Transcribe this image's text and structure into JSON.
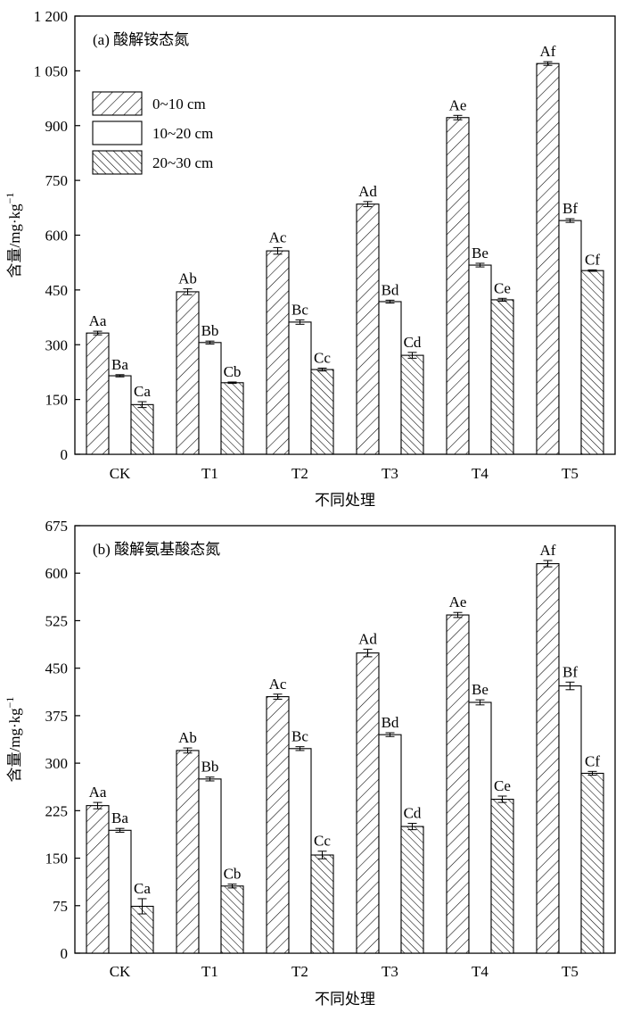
{
  "legend": [
    "0~10 cm",
    "10~20 cm",
    "20~30 cm"
  ],
  "colors": {
    "axis": "#000000",
    "bar_fill": "#ffffff",
    "hatch": "#000000"
  },
  "chart_data": [
    {
      "type": "bar",
      "title": "(a) 酸解铵态氮",
      "xlabel": "不同处理",
      "ylabel_main": "含量/mg·kg",
      "ylabel_sup": "−1",
      "categories": [
        "CK",
        "T1",
        "T2",
        "T3",
        "T4",
        "T5"
      ],
      "ylim": [
        0,
        1200
      ],
      "yticks": [
        0,
        150,
        300,
        450,
        600,
        750,
        900,
        1050,
        1200
      ],
      "ytick_labels": [
        "0",
        "150",
        "300",
        "450",
        "600",
        "750",
        "900",
        "1 050",
        "1 200"
      ],
      "legend_position": "top-left",
      "series": [
        {
          "name": "0~10 cm",
          "pattern": "hatch-right",
          "values": [
            332,
            445,
            557,
            685,
            922,
            1070
          ],
          "errors": [
            5,
            8,
            9,
            7,
            6,
            5
          ],
          "labels": [
            "Aa",
            "Ab",
            "Ac",
            "Ad",
            "Ae",
            "Af"
          ]
        },
        {
          "name": "10~20 cm",
          "pattern": "none",
          "values": [
            215,
            306,
            362,
            418,
            518,
            640
          ],
          "errors": [
            3,
            4,
            6,
            4,
            5,
            5
          ],
          "labels": [
            "Ba",
            "Bb",
            "Bc",
            "Bd",
            "Be",
            "Bf"
          ]
        },
        {
          "name": "20~30 cm",
          "pattern": "hatch-left",
          "values": [
            136,
            196,
            232,
            271,
            423,
            503
          ],
          "errors": [
            8,
            2,
            4,
            8,
            4,
            2
          ],
          "labels": [
            "Ca",
            "Cb",
            "Cc",
            "Cd",
            "Ce",
            "Cf"
          ]
        }
      ]
    },
    {
      "type": "bar",
      "title": "(b) 酸解氨基酸态氮",
      "xlabel": "不同处理",
      "ylabel_main": "含量/mg·kg",
      "ylabel_sup": "−1",
      "categories": [
        "CK",
        "T1",
        "T2",
        "T3",
        "T4",
        "T5"
      ],
      "ylim": [
        0,
        675
      ],
      "yticks": [
        0,
        75,
        150,
        225,
        300,
        375,
        450,
        525,
        600,
        675
      ],
      "ytick_labels": [
        "0",
        "75",
        "150",
        "225",
        "300",
        "375",
        "450",
        "525",
        "600",
        "675"
      ],
      "legend_position": "none",
      "series": [
        {
          "name": "0~10 cm",
          "pattern": "hatch-right",
          "values": [
            233,
            320,
            405,
            474,
            534,
            615
          ],
          "errors": [
            5,
            4,
            4,
            6,
            4,
            5
          ],
          "labels": [
            "Aa",
            "Ab",
            "Ac",
            "Ad",
            "Ae",
            "Af"
          ]
        },
        {
          "name": "10~20 cm",
          "pattern": "none",
          "values": [
            194,
            275,
            323,
            345,
            396,
            422
          ],
          "errors": [
            3,
            3,
            3,
            3,
            4,
            6
          ],
          "labels": [
            "Ba",
            "Bb",
            "Bc",
            "Bd",
            "Be",
            "Bf"
          ]
        },
        {
          "name": "20~30 cm",
          "pattern": "hatch-left",
          "values": [
            74,
            106,
            155,
            200,
            243,
            284
          ],
          "errors": [
            12,
            3,
            6,
            5,
            5,
            3
          ],
          "labels": [
            "Ca",
            "Cb",
            "Cc",
            "Cd",
            "Ce",
            "Cf"
          ]
        }
      ]
    }
  ]
}
